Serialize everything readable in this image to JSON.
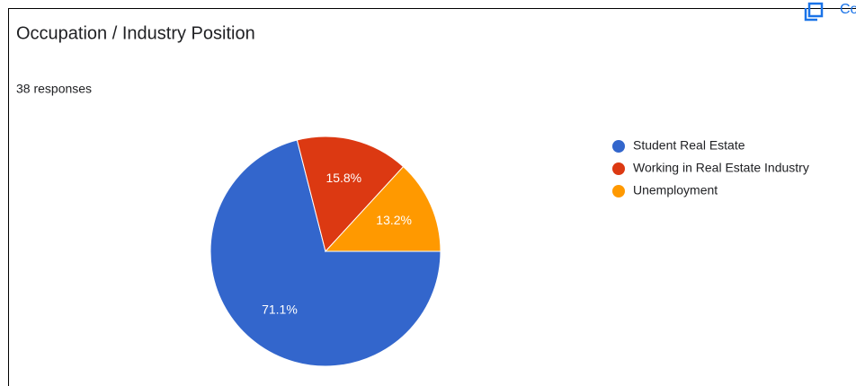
{
  "header": {
    "title": "Occupation / Industry Position",
    "action": "Copy"
  },
  "chart_data": {
    "type": "pie",
    "subtitle": "38 responses",
    "categories": [
      "Student Real Estate",
      "Working in Real Estate Industry",
      "Unemployment"
    ],
    "values": [
      71.1,
      15.8,
      13.2
    ],
    "value_labels": [
      "71.1%",
      "15.8%",
      "13.2%"
    ],
    "colors": [
      "#3366cc",
      "#dc3912",
      "#ff9900"
    ],
    "legend": "right"
  }
}
